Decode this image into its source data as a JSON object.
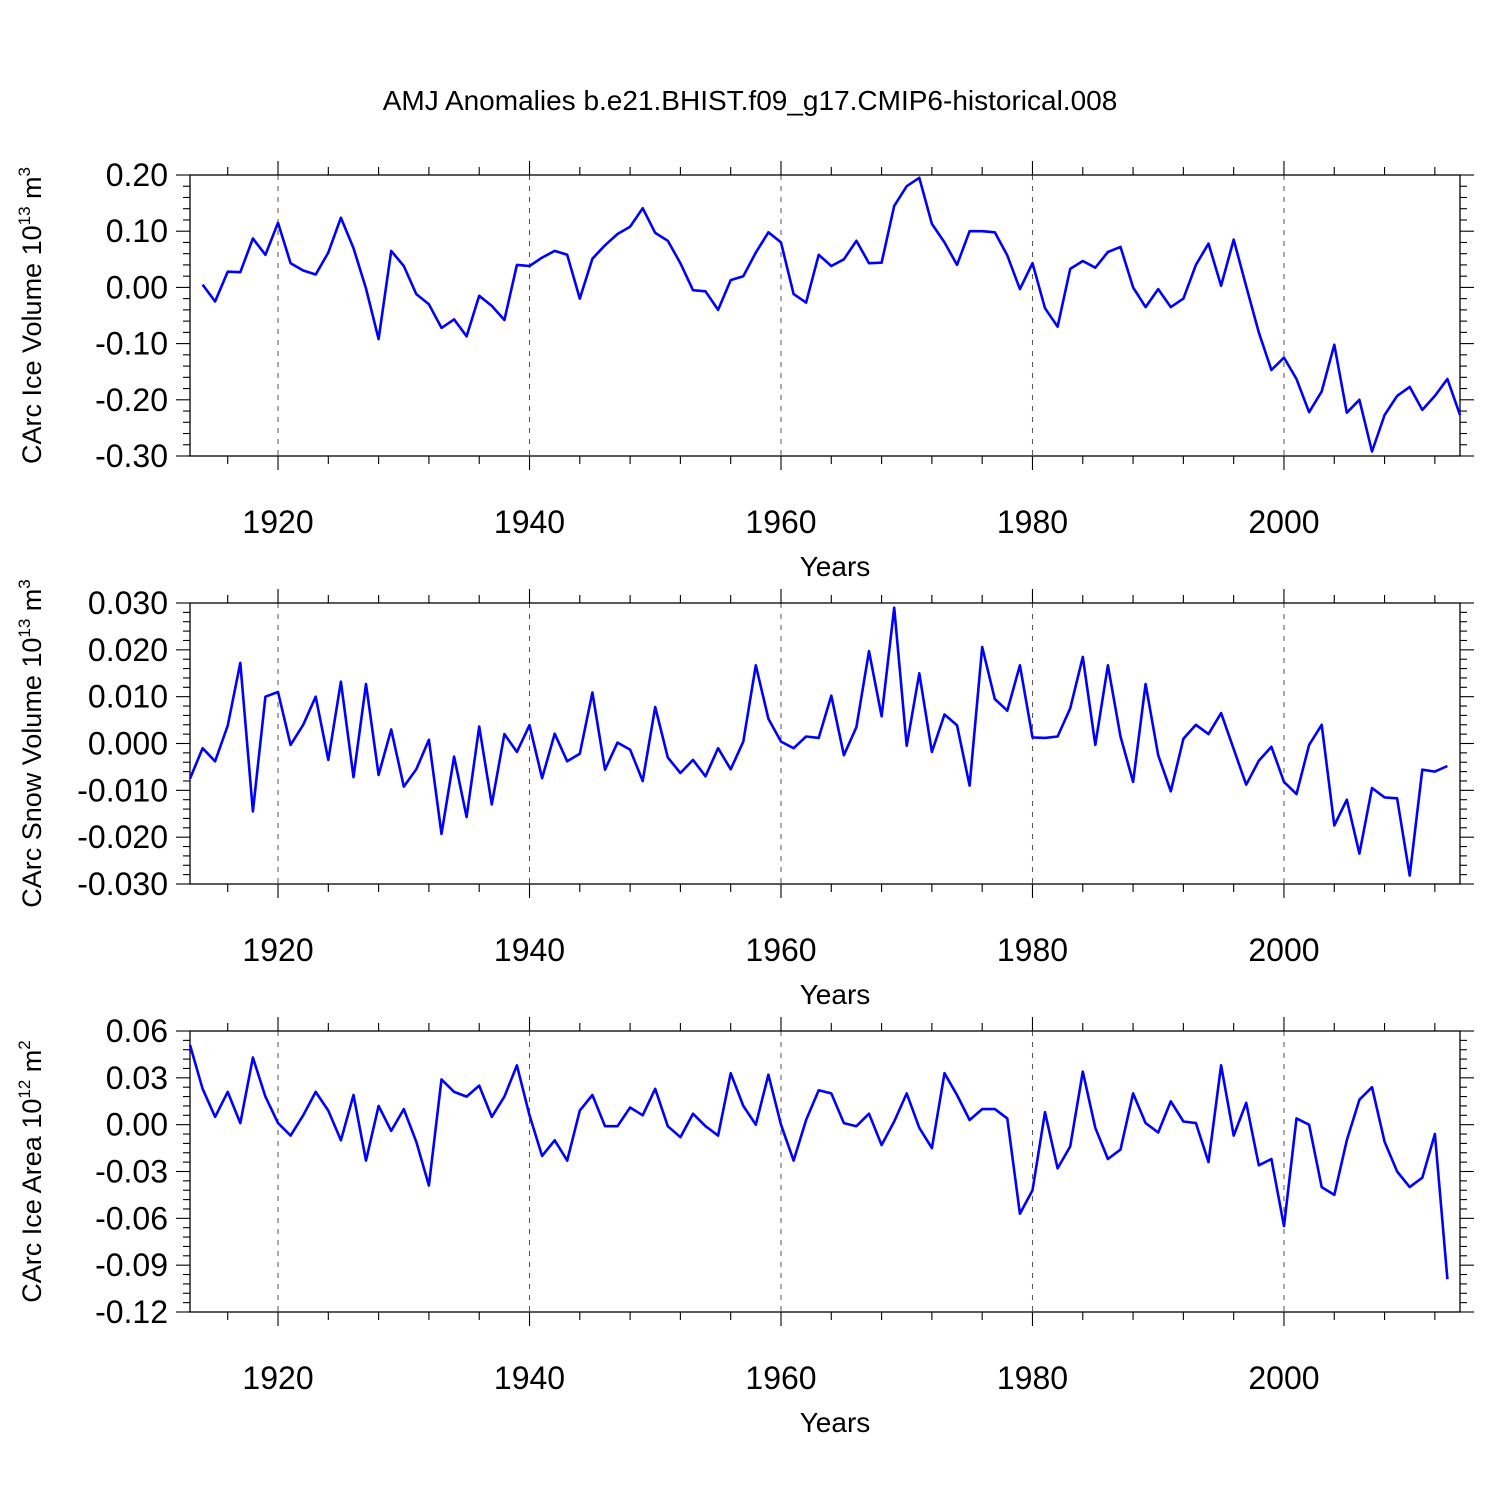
{
  "chart_data": [
    {
      "type": "line",
      "title": "AMJ Anomalies b.e21.BHIST.f09_g17.CMIP6-historical.008",
      "xlabel": "Years",
      "ylabel": "CArc Ice Volume 10",
      "ylabel_exp": "13",
      "ylabel_unit": " m",
      "ylabel_unit_exp": "3",
      "xlim": [
        1913,
        2014
      ],
      "ylim": [
        -0.3,
        0.2
      ],
      "xticks": [
        "1920",
        "1940",
        "1960",
        "1980",
        "2000"
      ],
      "yticks": [
        "0.20",
        "0.10",
        "0.00",
        "-0.10",
        "-0.20",
        "-0.30"
      ],
      "grid": "vertical dashed at major x ticks",
      "color": "#0000ff",
      "x_start": 1914,
      "values": [
        0.005,
        -0.025,
        0.028,
        0.027,
        0.087,
        0.058,
        0.115,
        0.043,
        0.03,
        0.023,
        0.062,
        0.124,
        0.07,
        -0.002,
        -0.092,
        0.065,
        0.038,
        -0.012,
        -0.03,
        -0.072,
        -0.057,
        -0.087,
        -0.015,
        -0.033,
        -0.058,
        0.04,
        0.038,
        0.053,
        0.065,
        0.058,
        -0.02,
        0.051,
        0.075,
        0.095,
        0.108,
        0.141,
        0.097,
        0.083,
        0.043,
        -0.005,
        -0.007,
        -0.04,
        0.013,
        0.02,
        0.062,
        0.098,
        0.08,
        -0.012,
        -0.027,
        0.058,
        0.038,
        0.05,
        0.083,
        0.043,
        0.044,
        0.145,
        0.18,
        0.195,
        0.113,
        0.08,
        0.04,
        0.1,
        0.1,
        0.098,
        0.057,
        -0.003,
        0.043,
        -0.037,
        -0.07,
        0.033,
        0.047,
        0.035,
        0.063,
        0.072,
        0.0,
        -0.035,
        -0.003,
        -0.035,
        -0.02,
        0.04,
        0.078,
        0.003,
        0.085,
        0.002,
        -0.08,
        -0.147,
        -0.125,
        -0.163,
        -0.222,
        -0.185,
        -0.102,
        -0.223,
        -0.2,
        -0.292,
        -0.227,
        -0.193,
        -0.177,
        -0.218,
        -0.193,
        -0.163,
        -0.227
      ]
    },
    {
      "type": "line",
      "xlabel": "Years",
      "ylabel": "CArc Snow Volume 10",
      "ylabel_exp": "13",
      "ylabel_unit": " m",
      "ylabel_unit_exp": "3",
      "xlim": [
        1913,
        2014
      ],
      "ylim": [
        -0.03,
        0.03
      ],
      "xticks": [
        "1920",
        "1940",
        "1960",
        "1980",
        "2000"
      ],
      "yticks": [
        "0.030",
        "0.020",
        "0.010",
        "0.000",
        "-0.010",
        "-0.020",
        "-0.030"
      ],
      "grid": "vertical dashed at major x ticks",
      "color": "#0000ff",
      "x_start": 1913,
      "values": [
        -0.0075,
        -0.001,
        -0.0038,
        0.0038,
        0.0172,
        -0.0145,
        0.01,
        0.011,
        -0.0003,
        0.004,
        0.01,
        -0.0035,
        0.0132,
        -0.0072,
        0.0127,
        -0.0067,
        0.003,
        -0.0092,
        -0.0055,
        0.0008,
        -0.0193,
        -0.0028,
        -0.0157,
        0.0036,
        -0.013,
        0.002,
        -0.0018,
        0.0039,
        -0.0074,
        0.0021,
        -0.0038,
        -0.0022,
        0.0109,
        -0.0056,
        0.0002,
        -0.0013,
        -0.008,
        0.0078,
        -0.003,
        -0.0063,
        -0.0035,
        -0.007,
        -0.001,
        -0.0055,
        0.0004,
        0.0167,
        0.0053,
        0.0004,
        -0.001,
        0.0015,
        0.0012,
        0.0102,
        -0.0025,
        0.0035,
        0.0197,
        0.0058,
        0.029,
        -0.0005,
        0.015,
        -0.0018,
        0.0062,
        0.0039,
        -0.009,
        0.0206,
        0.0095,
        0.007,
        0.0167,
        0.0013,
        0.0012,
        0.0015,
        0.0075,
        0.0185,
        -0.0003,
        0.0167,
        0.0015,
        -0.0082,
        0.0127,
        -0.0025,
        -0.0102,
        0.001,
        0.004,
        0.002,
        0.0065,
        -0.0012,
        -0.0088,
        -0.0037,
        -0.0007,
        -0.0082,
        -0.0108,
        -0.0003,
        0.004,
        -0.0175,
        -0.012,
        -0.0235,
        -0.0095,
        -0.0115,
        -0.0117,
        -0.0282,
        -0.0056,
        -0.006,
        -0.0048
      ]
    },
    {
      "type": "line",
      "xlabel": "Years",
      "ylabel": "CArc Ice Area 10",
      "ylabel_exp": "12",
      "ylabel_unit": " m",
      "ylabel_unit_exp": "2",
      "xlim": [
        1913,
        2014
      ],
      "ylim": [
        -0.12,
        0.06
      ],
      "xticks": [
        "1920",
        "1940",
        "1960",
        "1980",
        "2000"
      ],
      "yticks": [
        "0.06",
        "0.03",
        "0.00",
        "-0.03",
        "-0.06",
        "-0.09",
        "-0.12"
      ],
      "grid": "vertical dashed at major x ticks",
      "color": "#0000ff",
      "x_start": 1913,
      "values": [
        0.051,
        0.023,
        0.005,
        0.021,
        0.001,
        0.043,
        0.018,
        0.001,
        -0.007,
        0.006,
        0.021,
        0.009,
        -0.01,
        0.019,
        -0.023,
        0.012,
        -0.004,
        0.01,
        -0.011,
        -0.039,
        0.029,
        0.021,
        0.018,
        0.025,
        0.005,
        0.018,
        0.038,
        0.006,
        -0.02,
        -0.01,
        -0.023,
        0.009,
        0.019,
        -0.001,
        -0.001,
        0.011,
        0.006,
        0.023,
        -0.001,
        -0.008,
        0.007,
        -0.001,
        -0.007,
        0.033,
        0.012,
        0.0,
        0.032,
        0.0,
        -0.023,
        0.003,
        0.022,
        0.02,
        0.001,
        -0.001,
        0.007,
        -0.013,
        0.002,
        0.02,
        -0.002,
        -0.015,
        0.033,
        0.019,
        0.003,
        0.01,
        0.01,
        0.004,
        -0.057,
        -0.042,
        0.008,
        -0.028,
        -0.014,
        0.034,
        -0.002,
        -0.022,
        -0.016,
        0.02,
        0.001,
        -0.005,
        0.015,
        0.002,
        0.001,
        -0.024,
        0.038,
        -0.007,
        0.014,
        -0.026,
        -0.022,
        -0.065,
        0.004,
        0.0,
        -0.04,
        -0.045,
        -0.01,
        0.016,
        0.024,
        -0.011,
        -0.03,
        -0.04,
        -0.034,
        -0.006,
        -0.099
      ]
    }
  ]
}
